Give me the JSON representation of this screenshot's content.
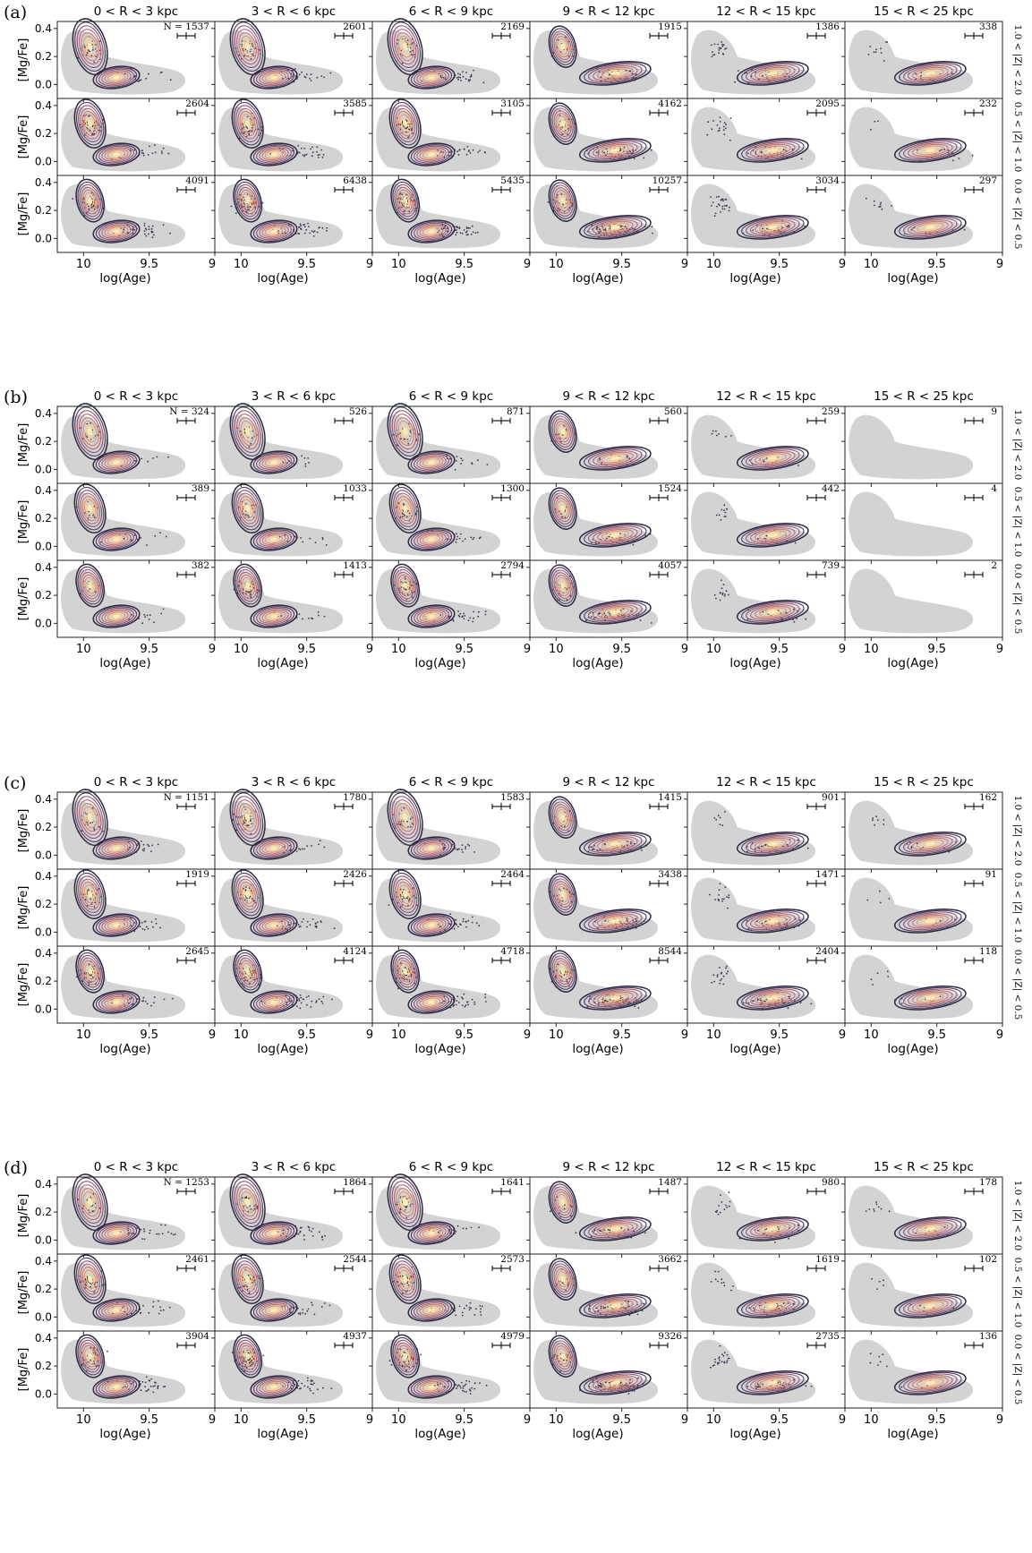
{
  "chart_data": {
    "type": "scatter",
    "description_kind": "grid of density contour plots over scatter points, four blocks (a)-(d), each 3 rows (|Z| bins) x 6 columns (R bins)",
    "col_labels": [
      "0 < R < 3 kpc",
      "3 < R < 6 kpc",
      "6 < R < 9 kpc",
      "9 < R < 12 kpc",
      "12 < R < 15 kpc",
      "15 < R < 25 kpc"
    ],
    "row_labels": [
      "1.0 < |Z| < 2.0",
      "0.5 < |Z| < 1.0",
      "0.0 < |Z| < 0.5"
    ],
    "xlabel": "log(Age)",
    "ylabel": "[Mg/Fe]",
    "xlim": [
      10.2,
      9.0
    ],
    "ylim": [
      -0.1,
      0.45
    ],
    "xticks": [
      10,
      9.5,
      9
    ],
    "xtick_labels": [
      "10",
      "9.5",
      "9"
    ],
    "yticks": [
      0.0,
      0.2,
      0.4
    ],
    "ytick_labels": [
      "0.0",
      "0.2",
      "0.4"
    ],
    "count_prefix": "N = ",
    "colors": {
      "background_region": "#d3d3d3",
      "points": "#3a3550",
      "contour_outer": "#2e2740",
      "contour_inner": "#fde9b8"
    },
    "panels": [
      {
        "label": "(a)",
        "counts": [
          [
            1537,
            2601,
            2169,
            1915,
            1386,
            338
          ],
          [
            2604,
            3585,
            3105,
            4162,
            2095,
            232
          ],
          [
            4091,
            6438,
            5435,
            10257,
            3034,
            297
          ]
        ]
      },
      {
        "label": "(b)",
        "counts": [
          [
            324,
            526,
            871,
            560,
            259,
            9
          ],
          [
            389,
            1033,
            1300,
            1524,
            442,
            4
          ],
          [
            382,
            1413,
            2794,
            4057,
            739,
            2
          ]
        ]
      },
      {
        "label": "(c)",
        "counts": [
          [
            1151,
            1780,
            1583,
            1415,
            901,
            162
          ],
          [
            1919,
            2426,
            2464,
            3438,
            1471,
            91
          ],
          [
            2645,
            4124,
            4718,
            8544,
            2404,
            118
          ]
        ]
      },
      {
        "label": "(d)",
        "counts": [
          [
            1253,
            1864,
            1641,
            1487,
            980,
            178
          ],
          [
            2461,
            2544,
            2573,
            3662,
            1619,
            102
          ],
          [
            3904,
            4937,
            4979,
            9326,
            2735,
            136
          ]
        ]
      }
    ]
  }
}
